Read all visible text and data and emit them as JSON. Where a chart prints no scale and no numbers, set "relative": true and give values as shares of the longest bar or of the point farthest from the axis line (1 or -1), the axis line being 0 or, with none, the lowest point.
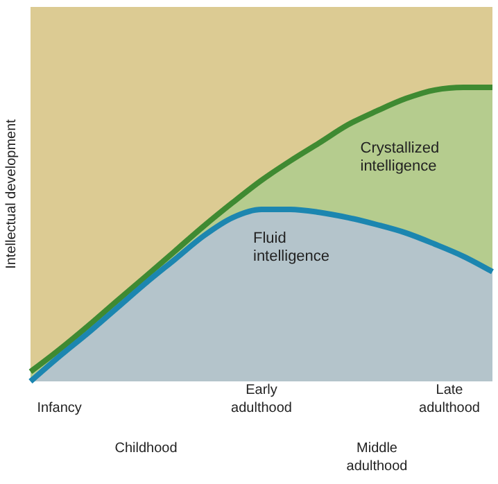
{
  "chart_data": {
    "type": "area",
    "relative": true,
    "ylabel": "Intellectual development",
    "categories": [
      null,
      "Infancy",
      null,
      null,
      "Childhood",
      null,
      null,
      null,
      "Early adulthood",
      null,
      null,
      null,
      "Middle adulthood",
      null,
      null,
      "Late adulthood",
      null
    ],
    "series": [
      {
        "name": "Crystallized intelligence",
        "color": "#3f8a32",
        "values": [
          0.033,
          0.108,
          0.189,
          0.274,
          0.358,
          0.443,
          0.528,
          0.608,
          0.684,
          0.75,
          0.811,
          0.873,
          0.92,
          0.962,
          0.991,
          1,
          1
        ]
      },
      {
        "name": "Fluid intelligence",
        "color": "#1c86b0",
        "values": [
          0,
          0.085,
          0.165,
          0.25,
          0.335,
          0.415,
          0.495,
          0.557,
          0.585,
          0.585,
          0.575,
          0.557,
          0.533,
          0.505,
          0.467,
          0.425,
          0.373
        ]
      }
    ]
  }
}
